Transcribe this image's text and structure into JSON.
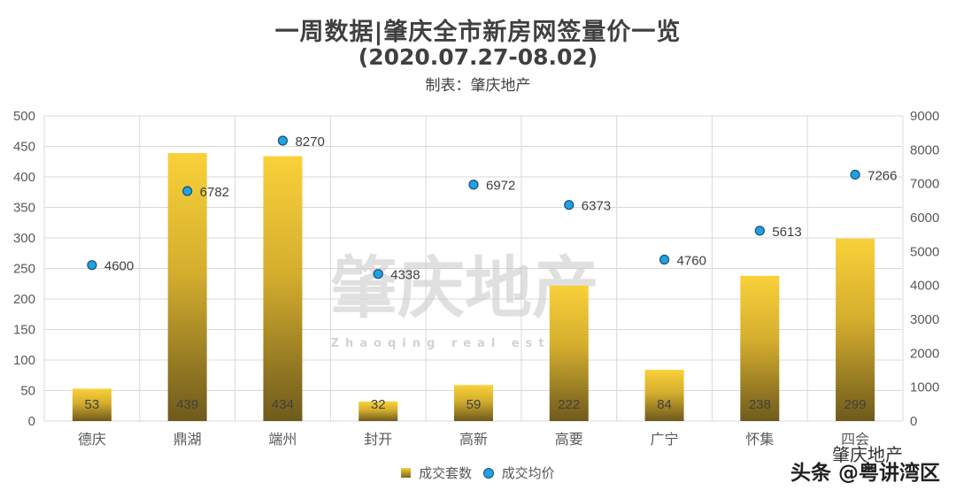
{
  "header": {
    "title": "一周数据|肇庆全市新房网签量价一览",
    "subtitle": "(2020.07.27-08.02)",
    "maker": "制表：肇庆地产"
  },
  "watermark": {
    "cn": "肇庆地产",
    "en": "Zhaoqing real estate",
    "corner_top": "肇庆地产",
    "corner_bottom": "头条 @粤讲湾区"
  },
  "chart_data": {
    "type": "bar",
    "categories": [
      "德庆",
      "鼎湖",
      "端州",
      "封开",
      "高新",
      "高要",
      "广宁",
      "怀集",
      "四会"
    ],
    "series": [
      {
        "name": "成交套数",
        "type": "bar",
        "axis": "left",
        "values": [
          53,
          439,
          434,
          32,
          59,
          222,
          84,
          238,
          299
        ],
        "color": "#f7d037"
      },
      {
        "name": "成交均价",
        "type": "scatter",
        "axis": "right",
        "values": [
          4600,
          6782,
          8270,
          4338,
          6972,
          6373,
          4760,
          5613,
          7266
        ],
        "color": "#1fa3e0"
      }
    ],
    "ylim": [
      0,
      500
    ],
    "yticks": [
      0,
      50,
      100,
      150,
      200,
      250,
      300,
      350,
      400,
      450,
      500
    ],
    "y2lim": [
      0,
      9000
    ],
    "y2ticks": [
      0,
      1000,
      2000,
      3000,
      4000,
      5000,
      6000,
      7000,
      8000,
      9000
    ],
    "grid": true,
    "legend_position": "bottom"
  }
}
